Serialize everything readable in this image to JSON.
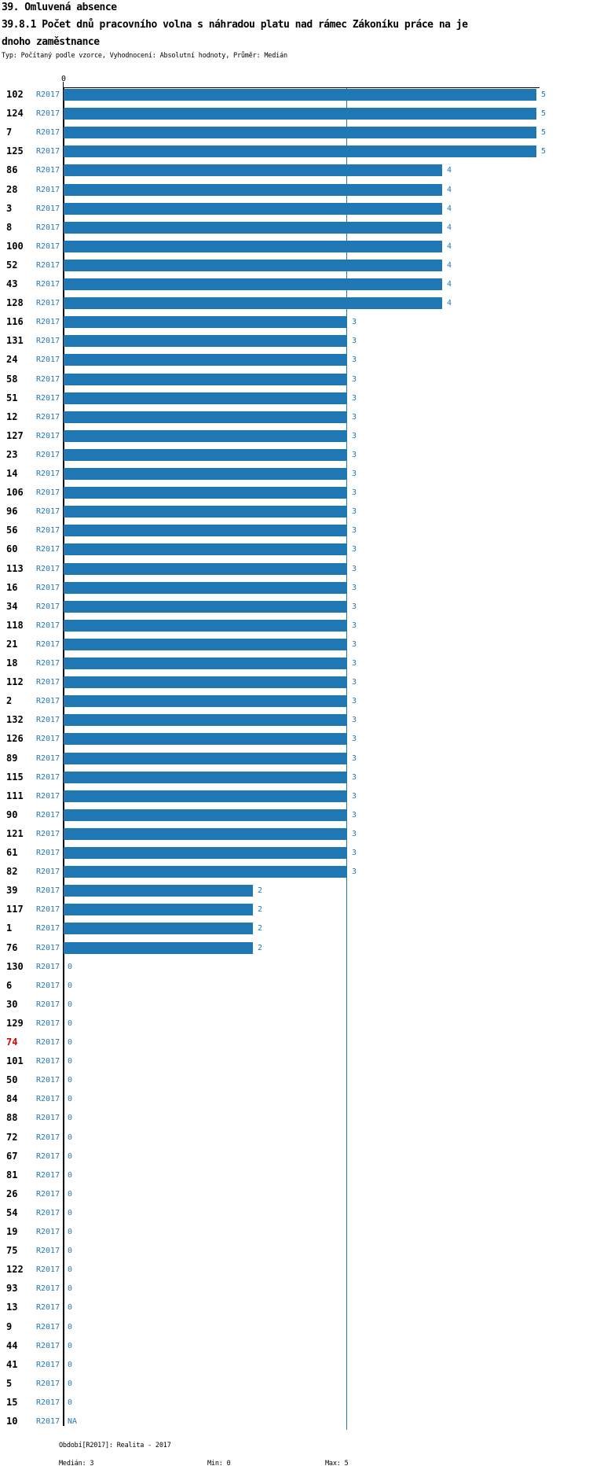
{
  "header": {
    "section_title": "39. Omluvená absence",
    "title_line1": "39.8.1 Počet dnů pracovního volna s náhradou platu nad rámec Zákoníku práce na je",
    "title_line2": "dnoho zaměstnance",
    "meta": "Typ: Počítaný podle vzorce, Vyhodnocení: Absolutní hodnoty, Průměr: Medián"
  },
  "axis": {
    "zero_label": "0"
  },
  "series_label": "R2017",
  "footer": {
    "period": "Období[R2017]: Realita - 2017",
    "median": "Medián: 3",
    "min": "Min: 0",
    "max": "Max: 5"
  },
  "colors": {
    "bar_blue": "#1f77b4",
    "text_blue": "#2878b9",
    "highlight_red": "#dd0000",
    "axis_black": "#000000"
  },
  "chart_data": {
    "type": "bar",
    "orientation": "horizontal",
    "title": "39.8.1 Počet dnů pracovního volna s náhradou platu nad rámec Zákoníku práce na jednoho zaměstnance",
    "xlabel": "",
    "ylabel": "",
    "xlim": [
      0,
      5
    ],
    "x_ticks": [
      "0"
    ],
    "grid": false,
    "median_reference_line": 3,
    "stats": {
      "median": 3,
      "min": 0,
      "max": 5
    },
    "series_name": "R2017",
    "rows": [
      {
        "label": "102",
        "value": 5,
        "text": "5"
      },
      {
        "label": "124",
        "value": 5,
        "text": "5"
      },
      {
        "label": "7",
        "value": 5,
        "text": "5"
      },
      {
        "label": "125",
        "value": 5,
        "text": "5"
      },
      {
        "label": "86",
        "value": 4,
        "text": "4"
      },
      {
        "label": "28",
        "value": 4,
        "text": "4"
      },
      {
        "label": "3",
        "value": 4,
        "text": "4"
      },
      {
        "label": "8",
        "value": 4,
        "text": "4"
      },
      {
        "label": "100",
        "value": 4,
        "text": "4"
      },
      {
        "label": "52",
        "value": 4,
        "text": "4"
      },
      {
        "label": "43",
        "value": 4,
        "text": "4"
      },
      {
        "label": "128",
        "value": 4,
        "text": "4"
      },
      {
        "label": "116",
        "value": 3,
        "text": "3"
      },
      {
        "label": "131",
        "value": 3,
        "text": "3"
      },
      {
        "label": "24",
        "value": 3,
        "text": "3"
      },
      {
        "label": "58",
        "value": 3,
        "text": "3"
      },
      {
        "label": "51",
        "value": 3,
        "text": "3"
      },
      {
        "label": "12",
        "value": 3,
        "text": "3"
      },
      {
        "label": "127",
        "value": 3,
        "text": "3"
      },
      {
        "label": "23",
        "value": 3,
        "text": "3"
      },
      {
        "label": "14",
        "value": 3,
        "text": "3"
      },
      {
        "label": "106",
        "value": 3,
        "text": "3"
      },
      {
        "label": "96",
        "value": 3,
        "text": "3"
      },
      {
        "label": "56",
        "value": 3,
        "text": "3"
      },
      {
        "label": "60",
        "value": 3,
        "text": "3"
      },
      {
        "label": "113",
        "value": 3,
        "text": "3"
      },
      {
        "label": "16",
        "value": 3,
        "text": "3"
      },
      {
        "label": "34",
        "value": 3,
        "text": "3"
      },
      {
        "label": "118",
        "value": 3,
        "text": "3"
      },
      {
        "label": "21",
        "value": 3,
        "text": "3"
      },
      {
        "label": "18",
        "value": 3,
        "text": "3"
      },
      {
        "label": "112",
        "value": 3,
        "text": "3"
      },
      {
        "label": "2",
        "value": 3,
        "text": "3"
      },
      {
        "label": "132",
        "value": 3,
        "text": "3"
      },
      {
        "label": "126",
        "value": 3,
        "text": "3"
      },
      {
        "label": "89",
        "value": 3,
        "text": "3"
      },
      {
        "label": "115",
        "value": 3,
        "text": "3"
      },
      {
        "label": "111",
        "value": 3,
        "text": "3"
      },
      {
        "label": "90",
        "value": 3,
        "text": "3"
      },
      {
        "label": "121",
        "value": 3,
        "text": "3"
      },
      {
        "label": "61",
        "value": 3,
        "text": "3"
      },
      {
        "label": "82",
        "value": 3,
        "text": "3"
      },
      {
        "label": "39",
        "value": 2,
        "text": "2"
      },
      {
        "label": "117",
        "value": 2,
        "text": "2"
      },
      {
        "label": "1",
        "value": 2,
        "text": "2"
      },
      {
        "label": "76",
        "value": 2,
        "text": "2"
      },
      {
        "label": "130",
        "value": 0,
        "text": "0"
      },
      {
        "label": "6",
        "value": 0,
        "text": "0"
      },
      {
        "label": "30",
        "value": 0,
        "text": "0"
      },
      {
        "label": "129",
        "value": 0,
        "text": "0"
      },
      {
        "label": "74",
        "value": 0,
        "text": "0",
        "red": true
      },
      {
        "label": "101",
        "value": 0,
        "text": "0"
      },
      {
        "label": "50",
        "value": 0,
        "text": "0"
      },
      {
        "label": "84",
        "value": 0,
        "text": "0"
      },
      {
        "label": "88",
        "value": 0,
        "text": "0"
      },
      {
        "label": "72",
        "value": 0,
        "text": "0"
      },
      {
        "label": "67",
        "value": 0,
        "text": "0"
      },
      {
        "label": "81",
        "value": 0,
        "text": "0"
      },
      {
        "label": "26",
        "value": 0,
        "text": "0"
      },
      {
        "label": "54",
        "value": 0,
        "text": "0"
      },
      {
        "label": "19",
        "value": 0,
        "text": "0"
      },
      {
        "label": "75",
        "value": 0,
        "text": "0"
      },
      {
        "label": "122",
        "value": 0,
        "text": "0"
      },
      {
        "label": "93",
        "value": 0,
        "text": "0"
      },
      {
        "label": "13",
        "value": 0,
        "text": "0"
      },
      {
        "label": "9",
        "value": 0,
        "text": "0"
      },
      {
        "label": "44",
        "value": 0,
        "text": "0"
      },
      {
        "label": "41",
        "value": 0,
        "text": "0"
      },
      {
        "label": "5",
        "value": 0,
        "text": "0"
      },
      {
        "label": "15",
        "value": 0,
        "text": "0"
      },
      {
        "label": "10",
        "value": null,
        "text": "NA"
      }
    ]
  }
}
